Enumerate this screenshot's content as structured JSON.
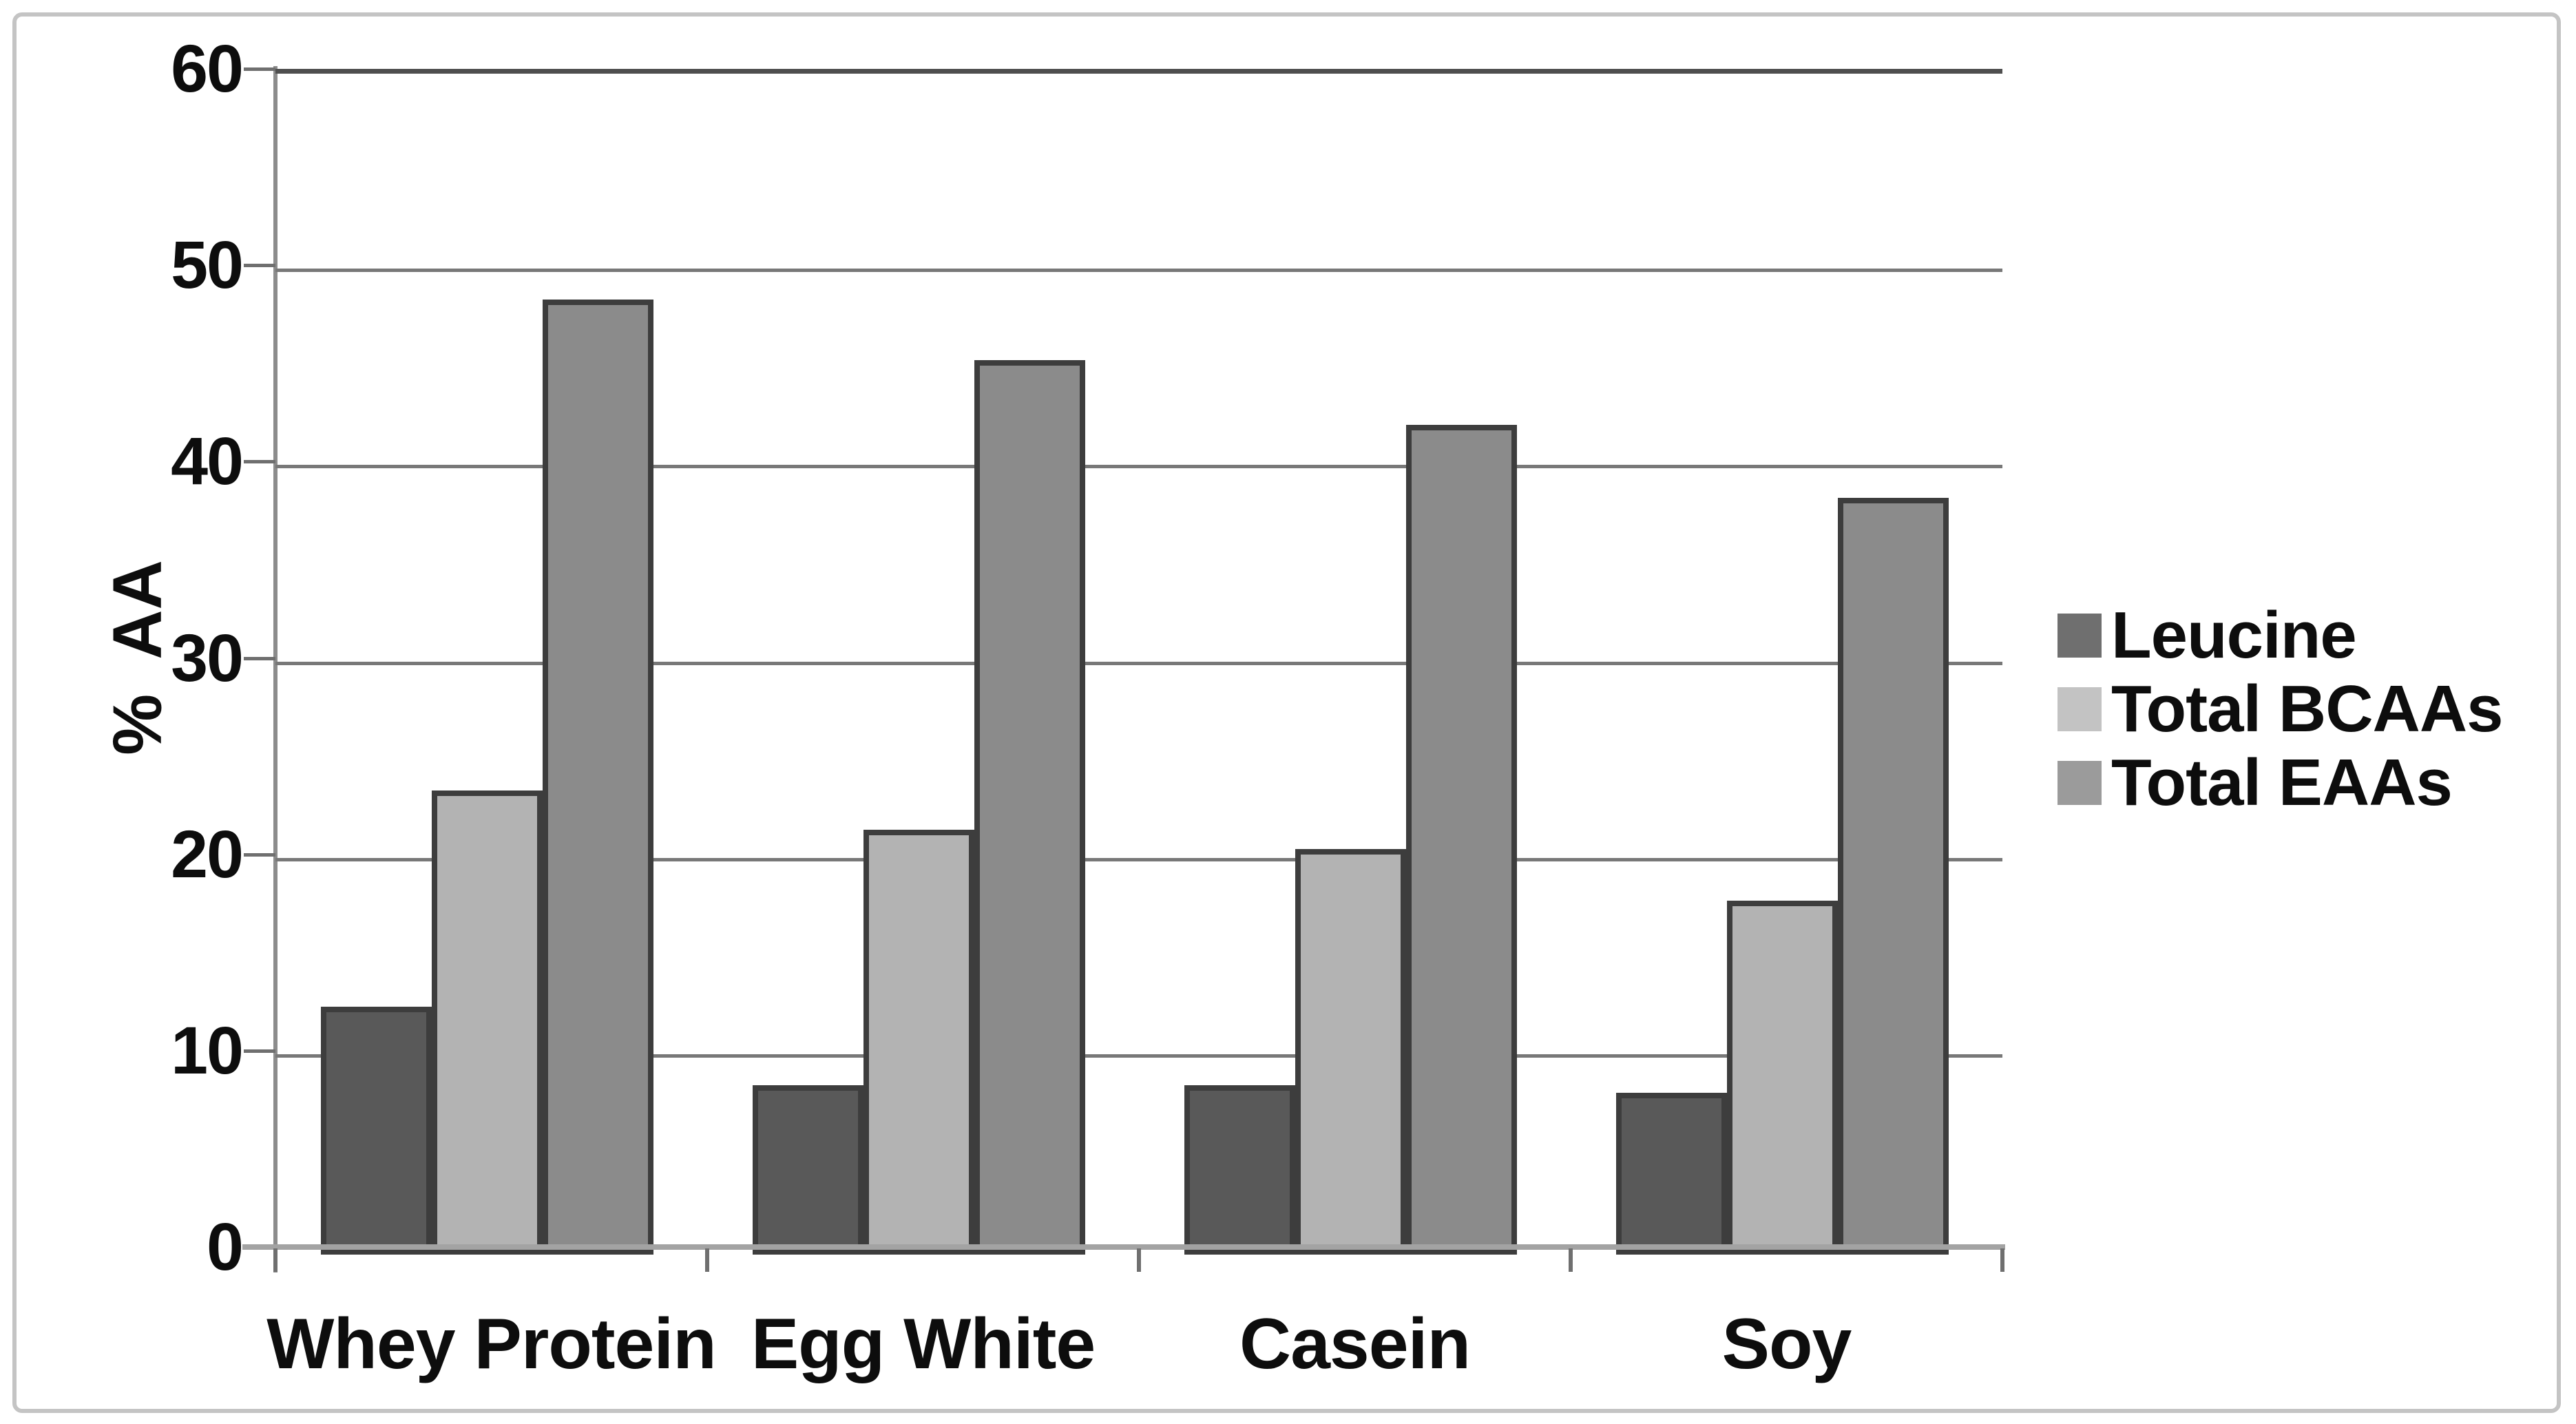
{
  "chart_data": {
    "type": "bar",
    "title": "",
    "categories": [
      "Whey Protein",
      "Egg White",
      "Casein",
      "Soy"
    ],
    "series": [
      {
        "name": "Leucine",
        "color": "#595959",
        "legend_swatch": "#6f6f6f",
        "values": [
          12.5,
          8.5,
          8.5,
          8.1
        ]
      },
      {
        "name": "Total BCAAs",
        "color": "#b3b3b3",
        "legend_swatch": "#c3c3c3",
        "values": [
          23.5,
          21.5,
          20.5,
          17.9
        ]
      },
      {
        "name": "Total EAAs",
        "color": "#8b8b8b",
        "legend_swatch": "#9b9b9b",
        "values": [
          48.5,
          45.4,
          42.1,
          38.4
        ]
      }
    ],
    "xlabel": "",
    "ylabel": "% AA",
    "ylim": [
      0,
      60
    ],
    "ytick_interval": 10,
    "yticks": [
      "60",
      "50",
      "40",
      "30",
      "20",
      "10",
      "0"
    ],
    "grid": true,
    "legend_position": "right",
    "colors": {
      "background": "#ffffff",
      "figure_border": "#c4c4c4",
      "gridline": "#787878",
      "top_gridline": "#4f4f4f",
      "x_axis": "#a3a3a3",
      "y_axis": "#8c8c8c",
      "tick": "#6f6f6f",
      "bar_border": "#3d3d3d",
      "text": "#0d0d0d"
    }
  }
}
